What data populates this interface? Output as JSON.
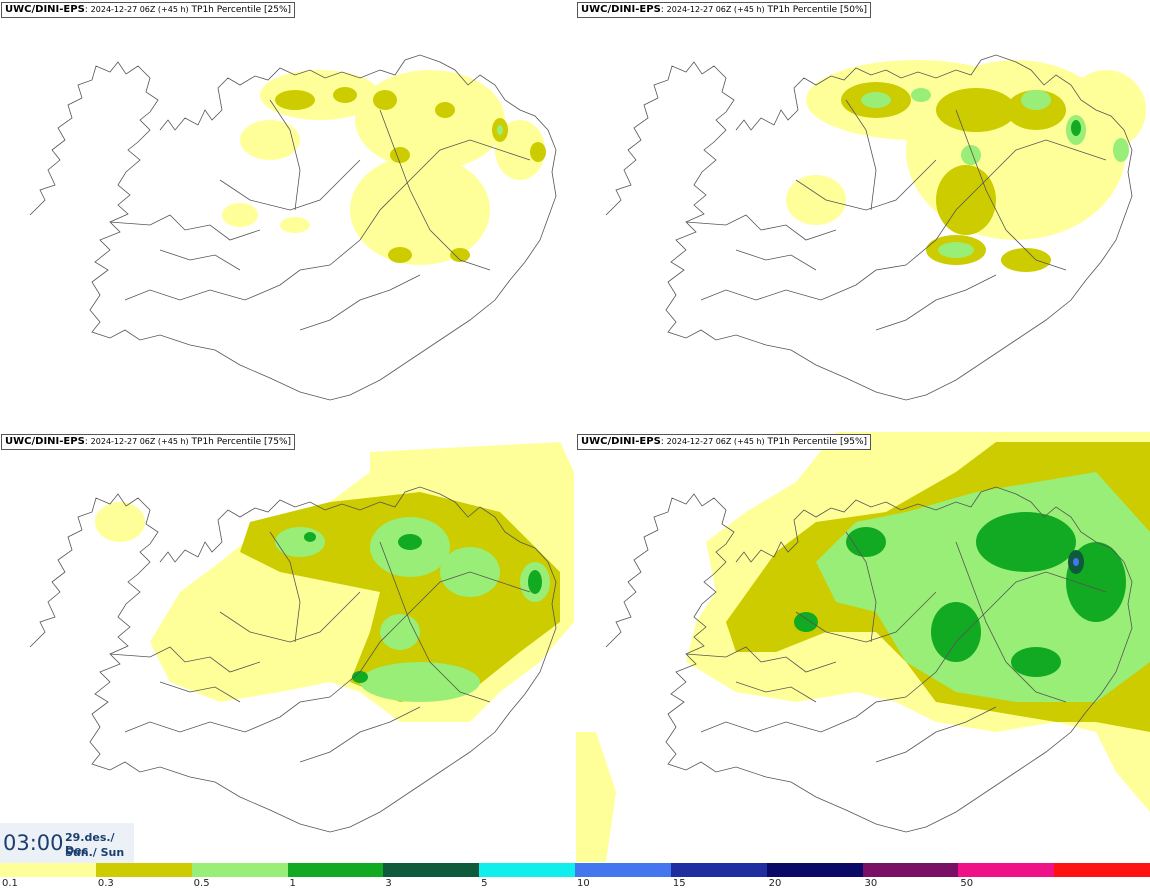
{
  "panels": [
    {
      "model": "UWC/DINI-EPS",
      "run": "2024-12-27 06Z (+45 h)",
      "field": "TP1h Percentile [25%]"
    },
    {
      "model": "UWC/DINI-EPS",
      "run": "2024-12-27 06Z (+45 h)",
      "field": "TP1h Percentile [50%]"
    },
    {
      "model": "UWC/DINI-EPS",
      "run": "2024-12-27 06Z (+45 h)",
      "field": "TP1h Percentile [75%]"
    },
    {
      "model": "UWC/DINI-EPS",
      "run": "2024-12-27 06Z (+45 h)",
      "field": "TP1h Percentile [95%]"
    }
  ],
  "valid_time": {
    "hour": "03:00",
    "date": "29.des./ Dec",
    "day": "Sun./ Sun"
  },
  "legend": {
    "colors": [
      "#ffff99",
      "#cccc00",
      "#99ee77",
      "#11aa22",
      "#0f5a3c",
      "#11eeee",
      "#4477ee",
      "#1f2fa0",
      "#0a0a66",
      "#7a0f66",
      "#ee1188",
      "#ff1111"
    ],
    "labels": [
      "0.1",
      "0.3",
      "0.5",
      "1",
      "3",
      "5",
      "10",
      "15",
      "20",
      "30",
      "50"
    ]
  }
}
